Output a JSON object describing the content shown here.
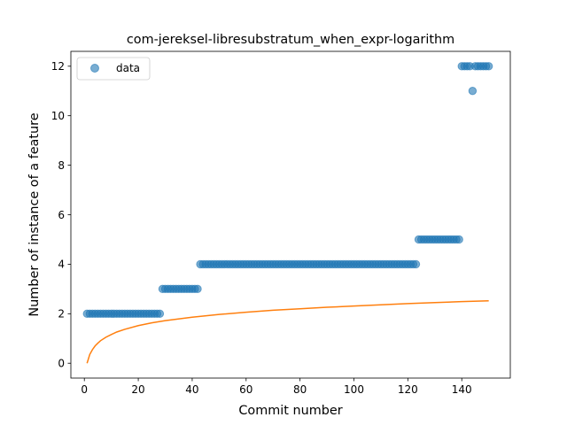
{
  "chart_data": {
    "type": "scatter",
    "title": "com-jereksel-libresubstratum_when_expr-logarithm",
    "xlabel": "Commit number",
    "ylabel": "Number of instance of a feature",
    "xlim": [
      -5,
      158
    ],
    "ylim": [
      -0.6,
      12.6
    ],
    "xticks": [
      0,
      20,
      40,
      60,
      80,
      100,
      120,
      140
    ],
    "yticks": [
      0,
      2,
      4,
      6,
      8,
      10,
      12
    ],
    "grid": false,
    "legend": {
      "position": "upper-left",
      "entries": [
        "data"
      ]
    },
    "colors": {
      "data": "#1f77b4",
      "fit": "#ff7f0e"
    },
    "series": [
      {
        "name": "data",
        "kind": "scatter",
        "x": [
          1,
          2,
          3,
          4,
          5,
          6,
          7,
          8,
          9,
          10,
          11,
          12,
          13,
          14,
          15,
          16,
          17,
          18,
          19,
          20,
          21,
          22,
          23,
          24,
          25,
          26,
          27,
          28,
          29,
          30,
          31,
          32,
          33,
          34,
          35,
          36,
          37,
          38,
          39,
          40,
          41,
          42,
          43,
          44,
          45,
          46,
          47,
          48,
          49,
          50,
          51,
          52,
          53,
          54,
          55,
          56,
          57,
          58,
          59,
          60,
          61,
          62,
          63,
          64,
          65,
          66,
          67,
          68,
          69,
          70,
          71,
          72,
          73,
          74,
          75,
          76,
          77,
          78,
          79,
          80,
          81,
          82,
          83,
          84,
          85,
          86,
          87,
          88,
          89,
          90,
          91,
          92,
          93,
          94,
          95,
          96,
          97,
          98,
          99,
          100,
          101,
          102,
          103,
          104,
          105,
          106,
          107,
          108,
          109,
          110,
          111,
          112,
          113,
          114,
          115,
          116,
          117,
          118,
          119,
          120,
          121,
          122,
          123,
          124,
          125,
          126,
          127,
          128,
          129,
          130,
          131,
          132,
          133,
          134,
          135,
          136,
          137,
          138,
          139,
          140,
          141,
          142,
          143,
          144,
          145,
          146,
          147,
          148,
          149,
          150
        ],
        "y": [
          2,
          2,
          2,
          2,
          2,
          2,
          2,
          2,
          2,
          2,
          2,
          2,
          2,
          2,
          2,
          2,
          2,
          2,
          2,
          2,
          2,
          2,
          2,
          2,
          2,
          2,
          2,
          2,
          3,
          3,
          3,
          3,
          3,
          3,
          3,
          3,
          3,
          3,
          3,
          3,
          3,
          3,
          4,
          4,
          4,
          4,
          4,
          4,
          4,
          4,
          4,
          4,
          4,
          4,
          4,
          4,
          4,
          4,
          4,
          4,
          4,
          4,
          4,
          4,
          4,
          4,
          4,
          4,
          4,
          4,
          4,
          4,
          4,
          4,
          4,
          4,
          4,
          4,
          4,
          4,
          4,
          4,
          4,
          4,
          4,
          4,
          4,
          4,
          4,
          4,
          4,
          4,
          4,
          4,
          4,
          4,
          4,
          4,
          4,
          4,
          4,
          4,
          4,
          4,
          4,
          4,
          4,
          4,
          4,
          4,
          4,
          4,
          4,
          4,
          4,
          4,
          4,
          4,
          4,
          4,
          4,
          4,
          4,
          5,
          5,
          5,
          5,
          5,
          5,
          5,
          5,
          5,
          5,
          5,
          5,
          5,
          5,
          5,
          5,
          12,
          12,
          12,
          12,
          11,
          12,
          12,
          12,
          12,
          12,
          12
        ]
      },
      {
        "name": "",
        "kind": "line",
        "function": "logarithm",
        "x": [
          1,
          2,
          3,
          4,
          5,
          6,
          8,
          10,
          12,
          15,
          20,
          25,
          30,
          40,
          50,
          60,
          70,
          80,
          90,
          100,
          110,
          120,
          130,
          140,
          150
        ],
        "y": [
          0,
          0.35,
          0.55,
          0.7,
          0.81,
          0.91,
          1.05,
          1.16,
          1.26,
          1.37,
          1.52,
          1.63,
          1.72,
          1.86,
          1.97,
          2.06,
          2.14,
          2.2,
          2.26,
          2.31,
          2.36,
          2.41,
          2.45,
          2.49,
          2.52
        ]
      }
    ]
  }
}
